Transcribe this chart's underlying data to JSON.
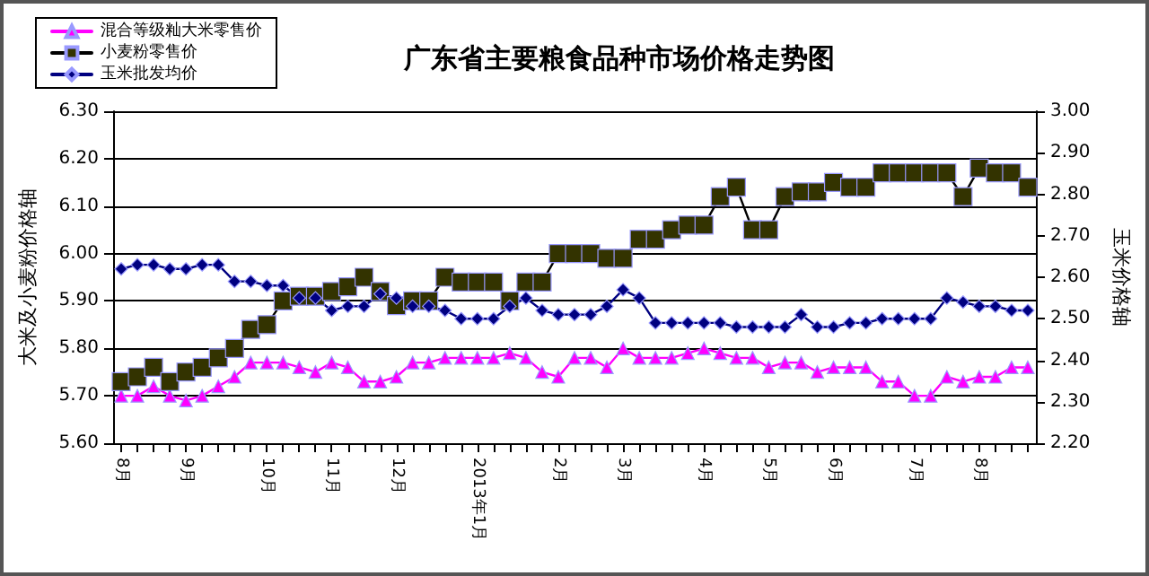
{
  "chart_data": {
    "type": "line",
    "title": "广东省主要粮食品种市场价格走势图",
    "ylabel": "大米及小麦粉价格轴",
    "y2label": "玉米价格轴",
    "categories": [
      "8月",
      null,
      null,
      null,
      "9月",
      null,
      null,
      null,
      null,
      "10月",
      null,
      null,
      null,
      "11月",
      null,
      null,
      null,
      "12月",
      null,
      null,
      null,
      null,
      "2013年1月",
      null,
      null,
      null,
      null,
      "2月",
      null,
      null,
      null,
      "3月",
      null,
      null,
      null,
      null,
      "4月",
      null,
      null,
      null,
      "5月",
      null,
      null,
      null,
      "6月",
      null,
      null,
      null,
      null,
      "7月",
      null,
      null,
      null,
      "8月",
      null,
      null,
      null
    ],
    "series": [
      {
        "name": "混合等级籼大米零售价",
        "color": "#ff00ff",
        "marker": "triangle",
        "values": [
          5.7,
          5.7,
          5.72,
          5.7,
          5.69,
          5.7,
          5.72,
          5.74,
          5.77,
          5.77,
          5.77,
          5.76,
          5.75,
          5.77,
          5.76,
          5.73,
          5.73,
          5.74,
          5.77,
          5.77,
          5.78,
          5.78,
          5.78,
          5.78,
          5.79,
          5.78,
          5.75,
          5.74,
          5.78,
          5.78,
          5.76,
          5.8,
          5.78,
          5.78,
          5.78,
          5.79,
          5.8,
          5.79,
          5.78,
          5.78,
          5.76,
          5.77,
          5.77,
          5.75,
          5.76,
          5.76,
          5.76,
          5.73,
          5.73,
          5.7,
          5.7,
          5.74,
          5.73,
          5.74,
          5.74,
          5.76,
          5.76
        ]
      },
      {
        "name": "小麦粉零售价",
        "color": "#333300",
        "marker": "square",
        "values": [
          5.73,
          5.74,
          5.76,
          5.73,
          5.75,
          5.76,
          5.78,
          5.8,
          5.84,
          5.85,
          5.9,
          5.91,
          5.91,
          5.92,
          5.93,
          5.95,
          5.92,
          5.89,
          5.9,
          5.9,
          5.95,
          5.94,
          5.94,
          5.94,
          5.9,
          5.94,
          5.94,
          6.0,
          6.0,
          6.0,
          5.99,
          5.99,
          6.03,
          6.03,
          6.05,
          6.06,
          6.06,
          6.12,
          6.14,
          6.05,
          6.05,
          6.12,
          6.13,
          6.13,
          6.15,
          6.14,
          6.14,
          6.17,
          6.17,
          6.17,
          6.17,
          6.17,
          6.12,
          6.18,
          6.17,
          6.17,
          6.14
        ]
      },
      {
        "name": "玉米批发均价",
        "color": "#000080",
        "marker": "diamond",
        "axis": "y2",
        "values": [
          2.62,
          2.63,
          2.63,
          2.62,
          2.62,
          2.63,
          2.63,
          2.59,
          2.59,
          2.58,
          2.58,
          2.55,
          2.55,
          2.52,
          2.53,
          2.53,
          2.56,
          2.55,
          2.53,
          2.53,
          2.52,
          2.5,
          2.5,
          2.5,
          2.53,
          2.55,
          2.52,
          2.51,
          2.51,
          2.51,
          2.53,
          2.57,
          2.55,
          2.49,
          2.49,
          2.49,
          2.49,
          2.49,
          2.48,
          2.48,
          2.48,
          2.48,
          2.51,
          2.48,
          2.48,
          2.49,
          2.49,
          2.5,
          2.5,
          2.5,
          2.5,
          2.55,
          2.54,
          2.53,
          2.53,
          2.52,
          2.52
        ]
      }
    ],
    "ylim": [
      5.6,
      6.3
    ],
    "yticks": [
      {
        "value": 5.6,
        "label": "5.60"
      },
      {
        "value": 5.7,
        "label": "5.70"
      },
      {
        "value": 5.8,
        "label": "5.80"
      },
      {
        "value": 5.9,
        "label": "5.90"
      },
      {
        "value": 6.0,
        "label": "6.00"
      },
      {
        "value": 6.1,
        "label": "6.10"
      },
      {
        "value": 6.2,
        "label": "6.20"
      },
      {
        "value": 6.3,
        "label": "6.30"
      }
    ],
    "y2lim": [
      2.2,
      3.0
    ],
    "y2ticks": [
      {
        "value": 2.2,
        "label": "2.20"
      },
      {
        "value": 2.3,
        "label": "2.30"
      },
      {
        "value": 2.4,
        "label": "2.40"
      },
      {
        "value": 2.5,
        "label": "2.50"
      },
      {
        "value": 2.6,
        "label": "2.60"
      },
      {
        "value": 2.7,
        "label": "2.70"
      },
      {
        "value": 2.8,
        "label": "2.80"
      },
      {
        "value": 2.9,
        "label": "2.90"
      },
      {
        "value": 3.0,
        "label": "3.00"
      }
    ],
    "grid": "y",
    "legend": "top left",
    "line_style": "solid"
  }
}
